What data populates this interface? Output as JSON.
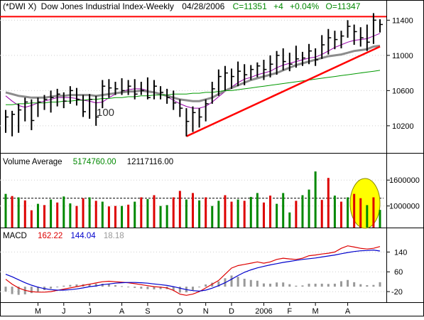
{
  "header": {
    "symbol": "(*DWI X)",
    "title": "Dow Jones Industrial Index-Weekly",
    "date": "04/28/2006",
    "close_label": "C=11351",
    "change_label": "+4",
    "pct_label": "+0.04%",
    "open_label": "O=11347"
  },
  "colors": {
    "price_bar": "#000000",
    "ma_purple": "#9900aa",
    "ma_gray": "#8c8c8c",
    "ma_green": "#009900",
    "trendline": "#ff0000",
    "resistance": "#ff0000",
    "vol_up": "#008800",
    "vol_down": "#dd0000",
    "macd_line": "#dd0000",
    "signal_line": "#0000cc",
    "histogram": "#999999",
    "highlight": "#ffff00"
  },
  "chart_data": [
    {
      "type": "ohlc",
      "name": "price-panel",
      "title": "Dow Jones Industrial Index-Weekly",
      "ylim": [
        9900,
        11500
      ],
      "yticks": [
        10200,
        10600,
        11000,
        11400
      ],
      "annotation": "100",
      "bars": [
        [
          10380,
          10120,
          10300
        ],
        [
          10370,
          10080,
          10330
        ],
        [
          10450,
          10120,
          10380
        ],
        [
          10520,
          10250,
          10470
        ],
        [
          10500,
          10150,
          10260
        ],
        [
          10520,
          10300,
          10470
        ],
        [
          10550,
          10380,
          10500
        ],
        [
          10600,
          10350,
          10520
        ],
        [
          10620,
          10420,
          10560
        ],
        [
          10580,
          10400,
          10480
        ],
        [
          10650,
          10450,
          10600
        ],
        [
          10630,
          10430,
          10500
        ],
        [
          10550,
          10300,
          10360
        ],
        [
          10560,
          10280,
          10500
        ],
        [
          10540,
          10200,
          10300
        ],
        [
          10720,
          10400,
          10650
        ],
        [
          10730,
          10520,
          10630
        ],
        [
          10700,
          10550,
          10620
        ],
        [
          10740,
          10550,
          10600
        ],
        [
          10720,
          10550,
          10650
        ],
        [
          10730,
          10500,
          10560
        ],
        [
          10700,
          10550,
          10600
        ],
        [
          10750,
          10500,
          10520
        ],
        [
          10720,
          10500,
          10650
        ],
        [
          10650,
          10500,
          10580
        ],
        [
          10620,
          10450,
          10520
        ],
        [
          10600,
          10380,
          10460
        ],
        [
          10500,
          10300,
          10400
        ],
        [
          10400,
          10080,
          10250
        ],
        [
          10420,
          10130,
          10350
        ],
        [
          10400,
          10180,
          10300
        ],
        [
          10500,
          10250,
          10450
        ],
        [
          10700,
          10450,
          10620
        ],
        [
          10840,
          10540,
          10760
        ],
        [
          10880,
          10600,
          10800
        ],
        [
          10850,
          10620,
          10760
        ],
        [
          10930,
          10650,
          10820
        ],
        [
          10900,
          10660,
          10780
        ],
        [
          10890,
          10720,
          10840
        ],
        [
          10920,
          10750,
          10880
        ],
        [
          10950,
          10720,
          10840
        ],
        [
          11000,
          10750,
          10900
        ],
        [
          11050,
          10780,
          11000
        ],
        [
          11080,
          10830,
          10930
        ],
        [
          11030,
          10820,
          10900
        ],
        [
          11110,
          10860,
          10960
        ],
        [
          11040,
          10880,
          10970
        ],
        [
          11130,
          10900,
          11050
        ],
        [
          11080,
          10880,
          10950
        ],
        [
          11230,
          10960,
          11120
        ],
        [
          11300,
          11010,
          11200
        ],
        [
          11280,
          11070,
          11180
        ],
        [
          11280,
          11080,
          11220
        ],
        [
          11400,
          11200,
          11330
        ],
        [
          11350,
          11120,
          11270
        ],
        [
          11320,
          11100,
          11200
        ],
        [
          11350,
          11050,
          11150
        ],
        [
          11480,
          11130,
          11400
        ],
        [
          11410,
          11260,
          11351
        ]
      ],
      "moving_averages": [
        {
          "name": "purple",
          "color": "#9900aa",
          "values": [
            10540,
            10480,
            10430,
            10410,
            10430,
            10460,
            10480,
            10500,
            10520,
            10520,
            10520,
            10510,
            10490,
            10480,
            10460,
            10470,
            10520,
            10560,
            10590,
            10610,
            10620,
            10620,
            10600,
            10580,
            10560,
            10530,
            10490,
            10450,
            10420,
            10400,
            10400,
            10420,
            10470,
            10530,
            10590,
            10640,
            10690,
            10730,
            10750,
            10780,
            10800,
            10820,
            10860,
            10890,
            10910,
            10930,
            10950,
            10970,
            10980,
            11010,
            11050,
            11090,
            11120,
            11150,
            11170,
            11180,
            11190,
            11220,
            11250
          ]
        },
        {
          "name": "gray",
          "color": "#8c8c8c",
          "values": [
            10580,
            10560,
            10540,
            10530,
            10520,
            10520,
            10520,
            10530,
            10540,
            10540,
            10550,
            10550,
            10550,
            10550,
            10540,
            10550,
            10560,
            10570,
            10580,
            10590,
            10590,
            10600,
            10590,
            10580,
            10560,
            10540,
            10520,
            10500,
            10490,
            10480,
            10480,
            10500,
            10520,
            10560,
            10600,
            10630,
            10660,
            10690,
            10720,
            10740,
            10760,
            10780,
            10800,
            10830,
            10860,
            10890,
            10910,
            10930,
            10950,
            10970,
            10990,
            11000,
            11010,
            11030,
            11050,
            11060,
            11070,
            11100,
            11110
          ]
        },
        {
          "name": "green",
          "color": "#009900",
          "values": [
            10440,
            10440,
            10450,
            10450,
            10460,
            10460,
            10460,
            10470,
            10470,
            10480,
            10480,
            10490,
            10490,
            10500,
            10500,
            10510,
            10510,
            10520,
            10520,
            10530,
            10530,
            10540,
            10540,
            10550,
            10550,
            10550,
            10560,
            10560,
            10560,
            10570,
            10570,
            10580,
            10580,
            10590,
            10600,
            10600,
            10610,
            10620,
            10630,
            10640,
            10650,
            10660,
            10670,
            10680,
            10690,
            10700,
            10710,
            10720,
            10730,
            10740,
            10750,
            10760,
            10770,
            10780,
            10790,
            10800,
            10810,
            10820,
            10830
          ]
        }
      ],
      "trendline": {
        "from": [
          28,
          10080
        ],
        "to": [
          58,
          11100
        ]
      },
      "resistance": 11440
    },
    {
      "type": "bar",
      "name": "volume-panel",
      "title": "Volume Average",
      "legend_values": [
        "5174760.00",
        "12117116.00"
      ],
      "ylim": [
        500000,
        1950000
      ],
      "yticks": [
        "1600000",
        "1000000"
      ],
      "ytick_values": [
        1600000,
        1000000
      ],
      "average": 1180000,
      "values": [
        1280000,
        1230000,
        1200000,
        1130000,
        900000,
        1050000,
        1020000,
        1150000,
        1080000,
        1220000,
        1060000,
        1000000,
        1180000,
        1200000,
        1120000,
        1100000,
        990000,
        1000000,
        1000000,
        1030000,
        1100000,
        1200000,
        1160000,
        1250000,
        1000000,
        1020000,
        1200000,
        1350000,
        1150000,
        1300000,
        1130000,
        1200000,
        1000000,
        1120000,
        1250000,
        1100000,
        1150000,
        1120000,
        1210000,
        1300000,
        1080000,
        1240000,
        1050000,
        1300000,
        850000,
        1120000,
        1250000,
        1380000,
        1800000,
        1140000,
        1650000,
        1240000,
        1100000,
        1200000,
        1280000,
        1180000,
        1020000,
        1200000,
        910000
      ],
      "colors": [
        "up",
        "down",
        "up",
        "down",
        "down",
        "up",
        "down",
        "up",
        "down",
        "up",
        "up",
        "down",
        "down",
        "up",
        "down",
        "up",
        "down",
        "down",
        "up",
        "down",
        "up",
        "down",
        "up",
        "down",
        "up",
        "up",
        "down",
        "down",
        "up",
        "down",
        "up",
        "down",
        "up",
        "up",
        "down",
        "down",
        "up",
        "down",
        "up",
        "up",
        "down",
        "down",
        "up",
        "up",
        "up",
        "down",
        "up",
        "up",
        "up",
        "down",
        "down",
        "up",
        "down",
        "up",
        "down",
        "down",
        "up",
        "down",
        "up"
      ],
      "highlight": "ellipse over last three bars"
    },
    {
      "type": "line",
      "name": "macd-panel",
      "title": "MACD",
      "legend_values": [
        "162.22",
        "144.04",
        "18.18"
      ],
      "ylim": [
        -60,
        190
      ],
      "yticks": [
        "140",
        "60",
        "-20"
      ],
      "ytick_values": [
        140,
        60,
        -20
      ],
      "series": [
        {
          "role": "macd",
          "color": "#dd0000",
          "values": [
            30,
            10,
            -5,
            -15,
            -20,
            -22,
            -22,
            -20,
            -15,
            -10,
            -5,
            0,
            5,
            10,
            15,
            20,
            22,
            20,
            18,
            16,
            12,
            8,
            4,
            0,
            -2,
            -5,
            -15,
            -30,
            -35,
            -30,
            -20,
            -5,
            10,
            25,
            50,
            75,
            85,
            90,
            95,
            100,
            95,
            100,
            110,
            115,
            112,
            110,
            115,
            125,
            128,
            132,
            135,
            140,
            155,
            165,
            160,
            155,
            152,
            155,
            162
          ]
        },
        {
          "role": "signal",
          "color": "#0000cc",
          "values": [
            50,
            40,
            28,
            16,
            6,
            -2,
            -8,
            -12,
            -14,
            -14,
            -12,
            -9,
            -5,
            0,
            3,
            8,
            11,
            14,
            16,
            17,
            17,
            16,
            14,
            11,
            8,
            5,
            0,
            -6,
            -12,
            -16,
            -18,
            -14,
            -6,
            4,
            16,
            30,
            45,
            58,
            68,
            76,
            82,
            88,
            93,
            98,
            102,
            106,
            110,
            113,
            116,
            120,
            124,
            128,
            133,
            138,
            142,
            145,
            146,
            148,
            144
          ]
        },
        {
          "role": "histogram",
          "color": "#999999",
          "values": [
            -20,
            -30,
            -33,
            -31,
            -26,
            -20,
            -14,
            -8,
            -1,
            4,
            7,
            9,
            10,
            10,
            12,
            12,
            11,
            6,
            2,
            -1,
            -5,
            -8,
            -10,
            -11,
            -10,
            -10,
            -15,
            -24,
            -23,
            -14,
            -2,
            9,
            16,
            21,
            34,
            45,
            40,
            32,
            27,
            24,
            13,
            12,
            17,
            17,
            10,
            4,
            5,
            12,
            12,
            12,
            11,
            12,
            22,
            27,
            18,
            10,
            6,
            7,
            18
          ]
        }
      ]
    }
  ],
  "x_axis": {
    "labels": [
      "M",
      "J",
      "J",
      "A",
      "S",
      "O",
      "N",
      "D",
      "2006",
      "F",
      "M",
      "A"
    ],
    "positions": [
      5,
      9,
      13,
      18,
      22,
      27,
      31,
      35,
      40,
      44,
      48,
      53
    ]
  }
}
